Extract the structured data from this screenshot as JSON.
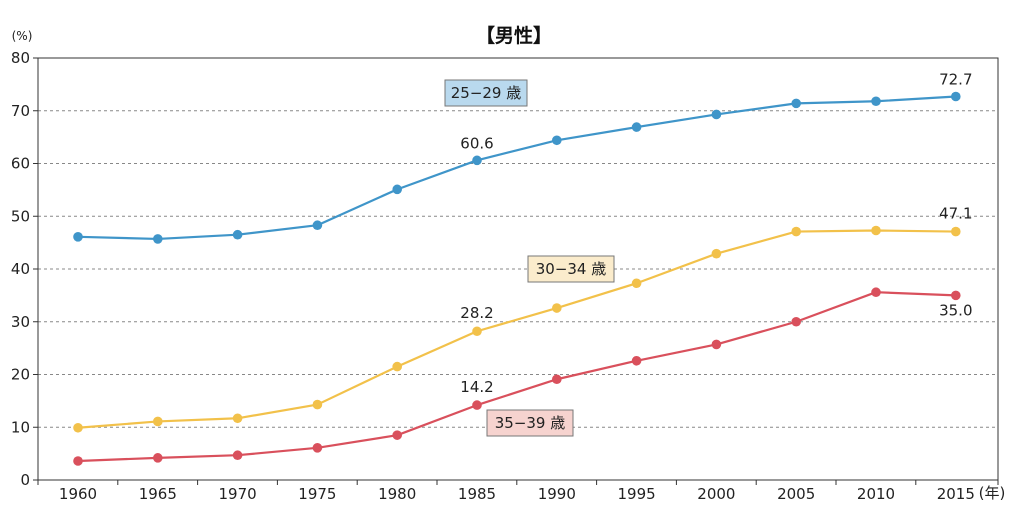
{
  "chart_data": {
    "type": "line",
    "title": "【男性】",
    "y_unit": "(%)",
    "x_unit": "(年)",
    "ylim": [
      0,
      80
    ],
    "y_ticks": [
      0,
      10,
      20,
      30,
      40,
      50,
      60,
      70,
      80
    ],
    "x": [
      "1960",
      "1965",
      "1970",
      "1975",
      "1980",
      "1985",
      "1990",
      "1995",
      "2000",
      "2005",
      "2010",
      "2015"
    ],
    "grid": "horizontal dotted",
    "series": [
      {
        "name": "25−29 歳",
        "color": "#3f95c9",
        "legend_bg": "#b9d9ee",
        "values": [
          46.1,
          45.7,
          46.5,
          48.3,
          55.1,
          60.6,
          64.4,
          66.9,
          69.3,
          71.4,
          71.8,
          72.7
        ],
        "labels": [
          {
            "index": 5,
            "text": "60.6"
          },
          {
            "index": 11,
            "text": "72.7"
          }
        ]
      },
      {
        "name": "30−34 歳",
        "color": "#f2c14a",
        "legend_bg": "#fbeccc",
        "values": [
          9.9,
          11.1,
          11.7,
          14.3,
          21.5,
          28.2,
          32.6,
          37.3,
          42.9,
          47.1,
          47.3,
          47.1
        ],
        "labels": [
          {
            "index": 5,
            "text": "28.2"
          },
          {
            "index": 11,
            "text": "47.1"
          }
        ]
      },
      {
        "name": "35−39 歳",
        "color": "#d9505c",
        "legend_bg": "#f6d3cf",
        "values": [
          3.6,
          4.2,
          4.7,
          6.1,
          8.5,
          14.2,
          19.1,
          22.6,
          25.7,
          30.0,
          35.6,
          35.0
        ],
        "labels": [
          {
            "index": 5,
            "text": "14.2"
          },
          {
            "index": 11,
            "text": "35.0"
          }
        ]
      }
    ]
  }
}
